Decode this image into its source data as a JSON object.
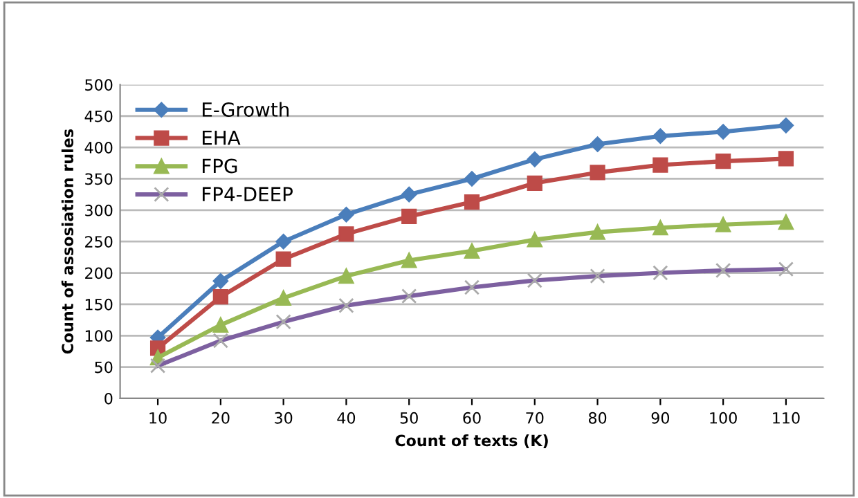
{
  "chart_data": {
    "type": "line",
    "xlabel": "Count of texts (K)",
    "ylabel": "Count of assosiation rules",
    "categories": [
      "10",
      "20",
      "30",
      "40",
      "50",
      "60",
      "70",
      "80",
      "90",
      "100",
      "110"
    ],
    "series": [
      {
        "name": "E-Growth",
        "color": "#4a7ebb",
        "marker": "diamond",
        "values": [
          97,
          187,
          250,
          293,
          325,
          350,
          381,
          405,
          418,
          425,
          435
        ]
      },
      {
        "name": "EHA",
        "color": "#be4b48",
        "marker": "square",
        "values": [
          80,
          162,
          222,
          262,
          290,
          313,
          343,
          360,
          372,
          378,
          382
        ]
      },
      {
        "name": "FPG",
        "color": "#98b954",
        "marker": "triangle",
        "values": [
          65,
          117,
          160,
          195,
          220,
          235,
          253,
          265,
          272,
          277,
          281
        ]
      },
      {
        "name": "FP4-DEEP",
        "color": "#7d60a0",
        "marker": "cross",
        "values": [
          52,
          92,
          122,
          148,
          163,
          177,
          188,
          195,
          200,
          204,
          206
        ]
      }
    ],
    "ylim": [
      0,
      500
    ],
    "yticks": [
      0,
      50,
      100,
      150,
      200,
      250,
      300,
      350,
      400,
      450,
      500
    ],
    "grid": "y",
    "legend": "top left"
  }
}
